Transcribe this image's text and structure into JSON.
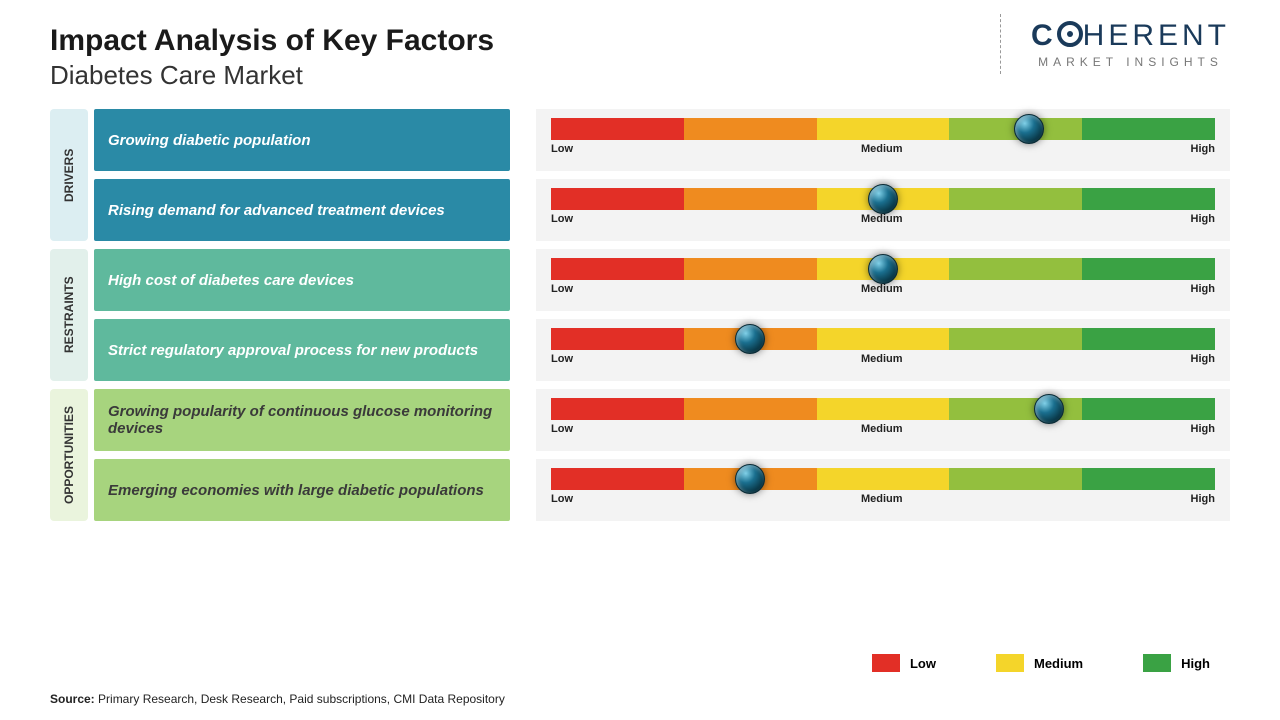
{
  "header": {
    "title": "Impact Analysis of Key Factors",
    "subtitle": "Diabetes Care Market",
    "logo_main_c": "C",
    "logo_main_rest": "HERENT",
    "logo_sub": "MARKET INSIGHTS"
  },
  "scale": {
    "low": "Low",
    "medium": "Medium",
    "high": "High"
  },
  "gradient_colors": [
    "#e22f26",
    "#ef8b1f",
    "#f4d52a",
    "#93bf3e",
    "#3aa244"
  ],
  "sections": [
    {
      "id": "drivers",
      "label": "DRIVERS",
      "tab_bg": "#dceef2",
      "row_bg": "#2a8aa6",
      "row_fg": "#ffffff",
      "rows": [
        {
          "factor": "Growing diabetic population",
          "impact_pct": 72
        },
        {
          "factor": "Rising demand for advanced treatment devices",
          "impact_pct": 50
        }
      ]
    },
    {
      "id": "restraints",
      "label": "RESTRAINTS",
      "tab_bg": "#e2f0eb",
      "row_bg": "#5fb99d",
      "row_fg": "#ffffff",
      "rows": [
        {
          "factor": "High cost of diabetes care devices",
          "impact_pct": 50
        },
        {
          "factor": "Strict regulatory approval process for new products",
          "impact_pct": 30
        }
      ]
    },
    {
      "id": "opportunities",
      "label": "OPPORTUNITIES",
      "tab_bg": "#eaf4dd",
      "row_bg": "#a7d47e",
      "row_fg": "#3a3a3a",
      "rows": [
        {
          "factor": "Growing popularity of continuous glucose monitoring devices",
          "impact_pct": 75
        },
        {
          "factor": "Emerging economies with large diabetic populations",
          "impact_pct": 30
        }
      ]
    }
  ],
  "legend": {
    "items": [
      {
        "label": "Low",
        "color": "#e22f26"
      },
      {
        "label": "Medium",
        "color": "#f4d52a"
      },
      {
        "label": "High",
        "color": "#3aa244"
      }
    ]
  },
  "source": {
    "label": "Source:",
    "text": " Primary Research, Desk Research, Paid subscriptions, CMI Data Repository"
  },
  "style": {
    "title_fontsize": 30,
    "subtitle_fontsize": 26,
    "factor_fontsize": 15,
    "scale_fontsize": 11,
    "knob_diameter": 30,
    "slider_height": 22
  }
}
